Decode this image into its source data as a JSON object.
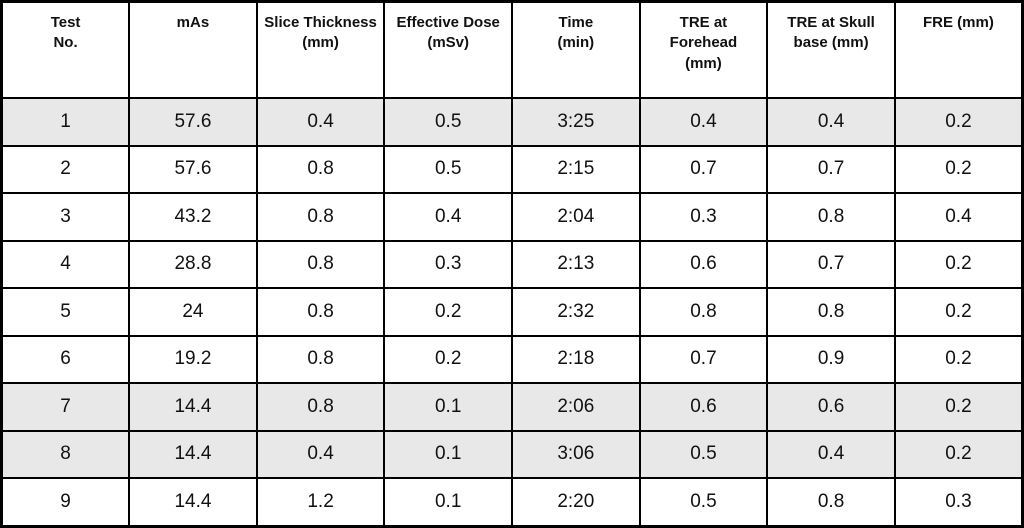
{
  "table": {
    "columns": [
      {
        "id": "test-no",
        "label": "Test\nNo."
      },
      {
        "id": "mas",
        "label": "mAs"
      },
      {
        "id": "slice-thickness",
        "label": "Slice Thickness\n(mm)"
      },
      {
        "id": "effective-dose",
        "label": "Effective Dose\n(mSv)"
      },
      {
        "id": "time",
        "label": "Time\n(min)"
      },
      {
        "id": "tre-forehead",
        "label": "TRE at\nForehead\n(mm)"
      },
      {
        "id": "tre-skull-base",
        "label": "TRE at Skull\nbase (mm)"
      },
      {
        "id": "fre",
        "label": "FRE (mm)"
      }
    ],
    "rows": [
      {
        "shaded": true,
        "cells": [
          "1",
          "57.6",
          "0.4",
          "0.5",
          "3:25",
          "0.4",
          "0.4",
          "0.2"
        ]
      },
      {
        "shaded": false,
        "cells": [
          "2",
          "57.6",
          "0.8",
          "0.5",
          "2:15",
          "0.7",
          "0.7",
          "0.2"
        ]
      },
      {
        "shaded": false,
        "cells": [
          "3",
          "43.2",
          "0.8",
          "0.4",
          "2:04",
          "0.3",
          "0.8",
          "0.4"
        ]
      },
      {
        "shaded": false,
        "cells": [
          "4",
          "28.8",
          "0.8",
          "0.3",
          "2:13",
          "0.6",
          "0.7",
          "0.2"
        ]
      },
      {
        "shaded": false,
        "cells": [
          "5",
          "24",
          "0.8",
          "0.2",
          "2:32",
          "0.8",
          "0.8",
          "0.2"
        ]
      },
      {
        "shaded": false,
        "cells": [
          "6",
          "19.2",
          "0.8",
          "0.2",
          "2:18",
          "0.7",
          "0.9",
          "0.2"
        ]
      },
      {
        "shaded": true,
        "cells": [
          "7",
          "14.4",
          "0.8",
          "0.1",
          "2:06",
          "0.6",
          "0.6",
          "0.2"
        ]
      },
      {
        "shaded": true,
        "cells": [
          "8",
          "14.4",
          "0.4",
          "0.1",
          "3:06",
          "0.5",
          "0.4",
          "0.2"
        ]
      },
      {
        "shaded": false,
        "cells": [
          "9",
          "14.4",
          "1.2",
          "0.1",
          "2:20",
          "0.5",
          "0.8",
          "0.3"
        ]
      }
    ]
  },
  "colors": {
    "row_shaded": "#e8e8e8",
    "row_plain": "#ffffff",
    "border": "#000000",
    "text": "#111111"
  }
}
